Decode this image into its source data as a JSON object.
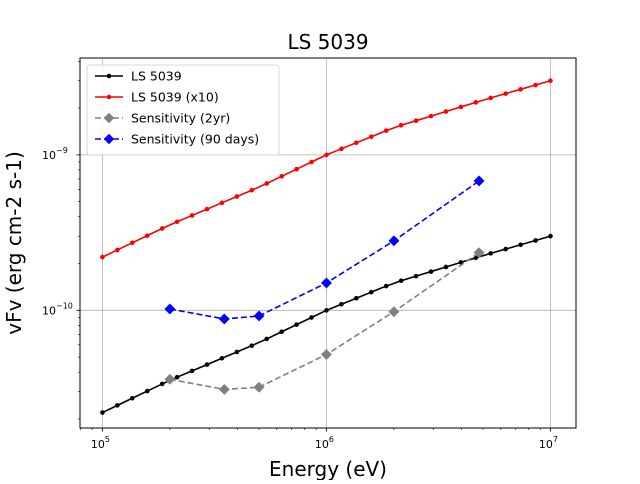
{
  "chart_data": {
    "type": "line",
    "title": "LS 5039",
    "xlabel": "Energy (eV)",
    "ylabel": "vFv (erg cm-2 s-1)",
    "xscale": "log",
    "yscale": "log",
    "xlim": [
      79400,
      13000000
    ],
    "ylim": [
      1.75e-11,
      4.2e-09
    ],
    "grid": true,
    "legend_position": "top-left",
    "x_ticks": [
      {
        "value": 100000,
        "base": "10",
        "exp": "5"
      },
      {
        "value": 1000000,
        "base": "10",
        "exp": "6"
      },
      {
        "value": 10000000,
        "base": "10",
        "exp": "7"
      }
    ],
    "y_ticks": [
      {
        "value": 1e-10,
        "base": "10",
        "exp": "−10"
      },
      {
        "value": 1e-09,
        "base": "10",
        "exp": "−9"
      }
    ],
    "series": [
      {
        "name": "LS 5039",
        "color": "#000000",
        "linestyle": "solid",
        "marker": "dot",
        "x_range": [
          100000,
          10000000
        ],
        "n_points": 31,
        "y_points": [
          [
            100000,
            2.2e-11
          ],
          [
            200000,
            3.55e-11
          ],
          [
            500000,
            6.2e-11
          ],
          [
            1000000,
            1e-10
          ],
          [
            2000000,
            1.5e-10
          ],
          [
            5000000,
            2.25e-10
          ],
          [
            10000000,
            3e-10
          ]
        ]
      },
      {
        "name": "LS 5039 (x10)",
        "color": "#ff0000",
        "linestyle": "solid",
        "marker": "dot",
        "x_range": [
          100000,
          10000000
        ],
        "n_points": 31,
        "y_points": [
          [
            100000,
            2.2e-10
          ],
          [
            200000,
            3.55e-10
          ],
          [
            500000,
            6.2e-10
          ],
          [
            1000000,
            1e-09
          ],
          [
            2000000,
            1.5e-09
          ],
          [
            5000000,
            2.25e-09
          ],
          [
            10000000,
            3e-09
          ]
        ]
      },
      {
        "name": "Sensitivity (2yr)",
        "color": "#808080",
        "linestyle": "dashed",
        "marker": "diamond",
        "points": [
          [
            200000,
            3.6e-11
          ],
          [
            350000,
            3.1e-11
          ],
          [
            500000,
            3.2e-11
          ],
          [
            1000000,
            5.2e-11
          ],
          [
            2000000,
            9.8e-11
          ],
          [
            4800000,
            2.35e-10
          ]
        ]
      },
      {
        "name": "Sensitivity (90 days)",
        "color": "#0000ff",
        "linestyle": "dashed",
        "marker": "diamond",
        "points": [
          [
            200000,
            1.02e-10
          ],
          [
            350000,
            8.8e-11
          ],
          [
            500000,
            9.2e-11
          ],
          [
            1000000,
            1.5e-10
          ],
          [
            2000000,
            2.8e-10
          ],
          [
            4800000,
            6.8e-10
          ]
        ]
      }
    ]
  }
}
